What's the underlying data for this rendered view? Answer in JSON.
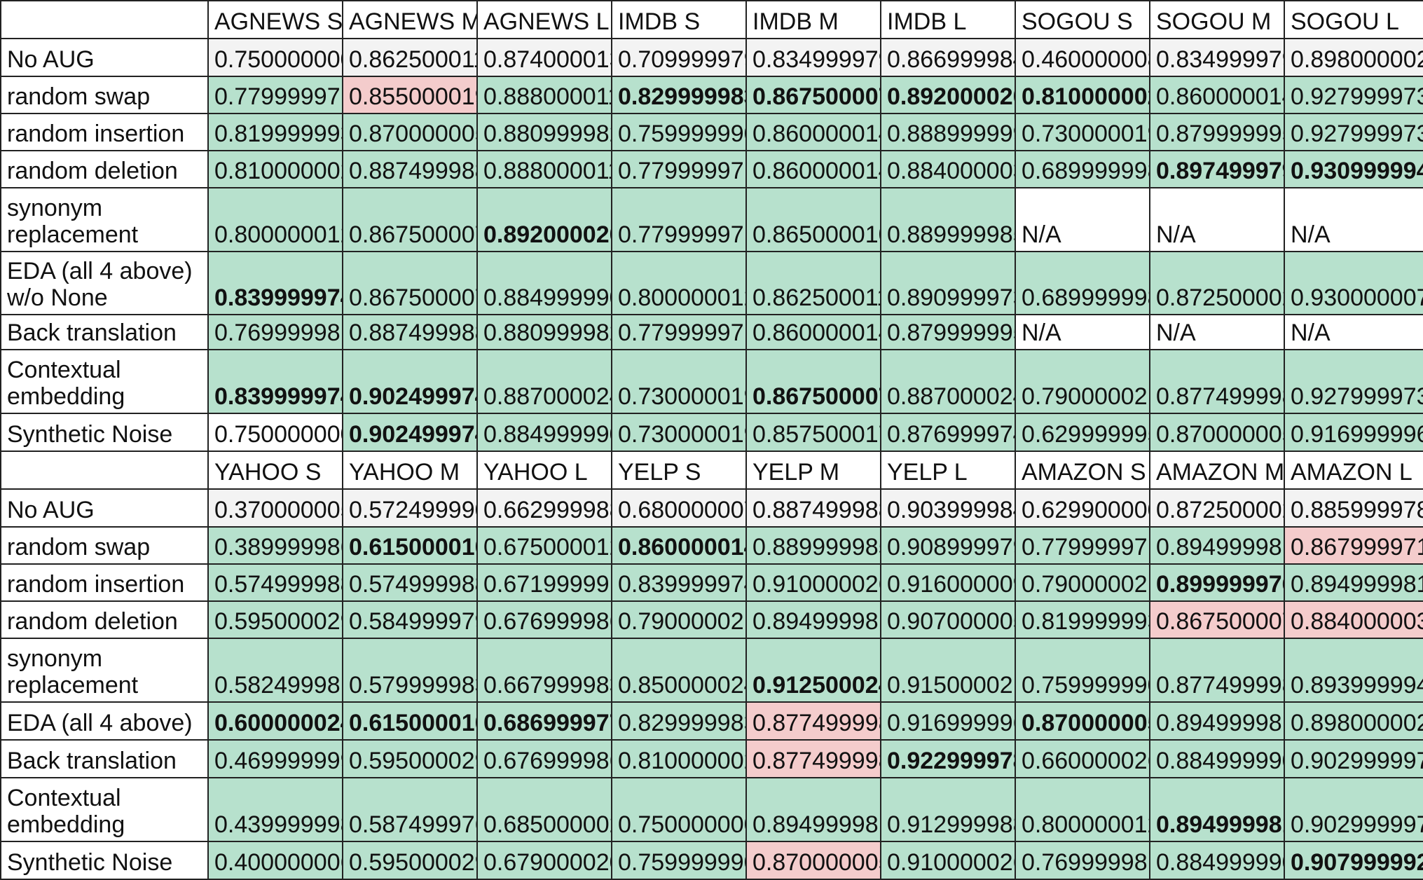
{
  "colors": {
    "baseline_gray": "#f3f3f3",
    "improved_green": "#b7e1cd",
    "worse_red": "#f4cccc",
    "plain_white": "#ffffff",
    "grid_line": "#222222"
  },
  "cell_style_legend": {
    "n": "baseline (No AUG) gray",
    "g": "green",
    "r": "red",
    "w": "white",
    "b": "bold"
  },
  "sections": [
    {
      "headers": [
        "",
        "AGNEWS S",
        "AGNEWS M",
        "AGNEWS L",
        "IMDB S",
        "IMDB M",
        "IMDB L",
        "SOGOU S",
        "SOGOU M",
        "SOGOU L"
      ],
      "rows": [
        {
          "label": "No AUG",
          "cells": [
            {
              "text": "0.750000000",
              "style": "n"
            },
            {
              "text": "0.862500011",
              "style": "n"
            },
            {
              "text": "0.874000013",
              "style": "n"
            },
            {
              "text": "0.709999979",
              "style": "n"
            },
            {
              "text": "0.834999979",
              "style": "n"
            },
            {
              "text": "0.866999984",
              "style": "n"
            },
            {
              "text": "0.460000008",
              "style": "n"
            },
            {
              "text": "0.834999979",
              "style": "n"
            },
            {
              "text": "0.898000002",
              "style": "n"
            }
          ]
        },
        {
          "label": "random swap",
          "cells": [
            {
              "text": "0.779999971",
              "style": "g"
            },
            {
              "text": "0.855000019",
              "style": "r"
            },
            {
              "text": "0.888000011",
              "style": "g"
            },
            {
              "text": "0.829999983",
              "style": "g b"
            },
            {
              "text": "0.867500007",
              "style": "g b"
            },
            {
              "text": "0.892000020",
              "style": "g b"
            },
            {
              "text": "0.810000002",
              "style": "g b"
            },
            {
              "text": "0.860000014",
              "style": "g"
            },
            {
              "text": "0.927999973",
              "style": "g"
            }
          ]
        },
        {
          "label": "random insertion",
          "cells": [
            {
              "text": "0.819999993",
              "style": "g"
            },
            {
              "text": "0.870000005",
              "style": "g"
            },
            {
              "text": "0.880999982",
              "style": "g"
            },
            {
              "text": "0.759999990",
              "style": "g"
            },
            {
              "text": "0.860000014",
              "style": "g"
            },
            {
              "text": "0.888999999",
              "style": "g"
            },
            {
              "text": "0.730000019",
              "style": "g"
            },
            {
              "text": "0.879999995",
              "style": "g"
            },
            {
              "text": "0.927999973",
              "style": "g"
            }
          ]
        },
        {
          "label": "random deletion",
          "cells": [
            {
              "text": "0.810000002",
              "style": "g"
            },
            {
              "text": "0.887499988",
              "style": "g"
            },
            {
              "text": "0.888000011",
              "style": "g"
            },
            {
              "text": "0.779999971",
              "style": "g"
            },
            {
              "text": "0.860000014",
              "style": "g"
            },
            {
              "text": "0.884000003",
              "style": "g"
            },
            {
              "text": "0.689999998",
              "style": "g"
            },
            {
              "text": "0.897499979",
              "style": "g b"
            },
            {
              "text": "0.930999994",
              "style": "g b"
            }
          ]
        },
        {
          "label": "synonym replacement",
          "cells": [
            {
              "text": "0.800000012",
              "style": "g"
            },
            {
              "text": "0.867500007",
              "style": "g"
            },
            {
              "text": "0.892000020",
              "style": "g b"
            },
            {
              "text": "0.779999971",
              "style": "g"
            },
            {
              "text": "0.865000010",
              "style": "g"
            },
            {
              "text": "0.889999985",
              "style": "g"
            },
            {
              "text": "N/A",
              "style": "w"
            },
            {
              "text": "N/A",
              "style": "w"
            },
            {
              "text": "N/A",
              "style": "w"
            }
          ]
        },
        {
          "label": "EDA (all 4 above) w/o None",
          "cells": [
            {
              "text": "0.839999974",
              "style": "g b"
            },
            {
              "text": "0.867500007",
              "style": "g"
            },
            {
              "text": "0.884999990",
              "style": "g"
            },
            {
              "text": "0.800000012",
              "style": "g"
            },
            {
              "text": "0.862500011",
              "style": "g"
            },
            {
              "text": "0.890999973",
              "style": "g"
            },
            {
              "text": "0.689999998",
              "style": "g"
            },
            {
              "text": "0.872500002",
              "style": "g"
            },
            {
              "text": "0.930000007",
              "style": "g"
            }
          ]
        },
        {
          "label": "Back translation",
          "cells": [
            {
              "text": "0.769999981",
              "style": "g"
            },
            {
              "text": "0.887499988",
              "style": "g"
            },
            {
              "text": "0.880999982",
              "style": "g"
            },
            {
              "text": "0.779999971",
              "style": "g"
            },
            {
              "text": "0.860000014",
              "style": "g"
            },
            {
              "text": "0.879999995",
              "style": "g"
            },
            {
              "text": "N/A",
              "style": "w"
            },
            {
              "text": "N/A",
              "style": "w"
            },
            {
              "text": "N/A",
              "style": "w"
            }
          ]
        },
        {
          "label": "Contextual embedding",
          "cells": [
            {
              "text": "0.839999974",
              "style": "g b"
            },
            {
              "text": "0.902499974",
              "style": "g b"
            },
            {
              "text": "0.887000024",
              "style": "g"
            },
            {
              "text": "0.730000019",
              "style": "g"
            },
            {
              "text": "0.867500007",
              "style": "g b"
            },
            {
              "text": "0.887000024",
              "style": "g"
            },
            {
              "text": "0.790000021",
              "style": "g"
            },
            {
              "text": "0.877499998",
              "style": "g"
            },
            {
              "text": "0.927999973",
              "style": "g"
            }
          ]
        },
        {
          "label": "Synthetic Noise",
          "cells": [
            {
              "text": "0.750000000",
              "style": "w"
            },
            {
              "text": "0.902499974",
              "style": "g b"
            },
            {
              "text": "0.884999990",
              "style": "g"
            },
            {
              "text": "0.730000019",
              "style": "g"
            },
            {
              "text": "0.857500017",
              "style": "g"
            },
            {
              "text": "0.876999974",
              "style": "g"
            },
            {
              "text": "0.629999995",
              "style": "g"
            },
            {
              "text": "0.870000005",
              "style": "g"
            },
            {
              "text": "0.916999996",
              "style": "g"
            }
          ]
        }
      ]
    },
    {
      "headers": [
        "",
        "YAHOO S",
        "YAHOO M",
        "YAHOO L",
        "YELP S",
        "YELP M",
        "YELP L",
        "AMAZON S",
        "AMAZON M",
        "AMAZON L"
      ],
      "rows": [
        {
          "label": "No AUG",
          "cells": [
            {
              "text": "0.370000005",
              "style": "n"
            },
            {
              "text": "0.572499990",
              "style": "n"
            },
            {
              "text": "0.662999988",
              "style": "n"
            },
            {
              "text": "0.680000007",
              "style": "n"
            },
            {
              "text": "0.887499988",
              "style": "n"
            },
            {
              "text": "0.903999984",
              "style": "n"
            },
            {
              "text": "0.629900000",
              "style": "n"
            },
            {
              "text": "0.872500002",
              "style": "n"
            },
            {
              "text": "0.885999978",
              "style": "n"
            }
          ]
        },
        {
          "label": "random swap",
          "cells": [
            {
              "text": "0.389999986",
              "style": "g"
            },
            {
              "text": "0.615000010",
              "style": "g b"
            },
            {
              "text": "0.675000012",
              "style": "g"
            },
            {
              "text": "0.860000014",
              "style": "g b"
            },
            {
              "text": "0.889999985",
              "style": "g"
            },
            {
              "text": "0.908999979",
              "style": "g"
            },
            {
              "text": "0.779999971",
              "style": "g"
            },
            {
              "text": "0.894999981",
              "style": "g"
            },
            {
              "text": "0.867999971",
              "style": "r"
            }
          ]
        },
        {
          "label": "random insertion",
          "cells": [
            {
              "text": "0.574999988",
              "style": "g"
            },
            {
              "text": "0.574999988",
              "style": "g"
            },
            {
              "text": "0.671999991",
              "style": "g"
            },
            {
              "text": "0.839999974",
              "style": "g"
            },
            {
              "text": "0.910000026",
              "style": "g"
            },
            {
              "text": "0.916000009",
              "style": "g"
            },
            {
              "text": "0.790000021",
              "style": "g"
            },
            {
              "text": "0.899999976",
              "style": "g b"
            },
            {
              "text": "0.894999981",
              "style": "g"
            }
          ]
        },
        {
          "label": "random deletion",
          "cells": [
            {
              "text": "0.595000029",
              "style": "g"
            },
            {
              "text": "0.584999979",
              "style": "g"
            },
            {
              "text": "0.676999986",
              "style": "g"
            },
            {
              "text": "0.790000021",
              "style": "g"
            },
            {
              "text": "0.894999981",
              "style": "g"
            },
            {
              "text": "0.907000005",
              "style": "g"
            },
            {
              "text": "0.819999993",
              "style": "g"
            },
            {
              "text": "0.867500007",
              "style": "r"
            },
            {
              "text": "0.884000003",
              "style": "r"
            }
          ]
        },
        {
          "label": "synonym replacement",
          "cells": [
            {
              "text": "0.582499981",
              "style": "g"
            },
            {
              "text": "0.579999983",
              "style": "g"
            },
            {
              "text": "0.667999983",
              "style": "g"
            },
            {
              "text": "0.850000024",
              "style": "g"
            },
            {
              "text": "0.912500024",
              "style": "g b"
            },
            {
              "text": "0.915000021",
              "style": "g"
            },
            {
              "text": "0.759999990",
              "style": "g"
            },
            {
              "text": "0.877499998",
              "style": "g"
            },
            {
              "text": "0.893999994",
              "style": "g"
            }
          ]
        },
        {
          "label": "EDA (all 4 above)",
          "cells": [
            {
              "text": "0.600000024",
              "style": "g b"
            },
            {
              "text": "0.615000010",
              "style": "g b"
            },
            {
              "text": "0.686999977",
              "style": "g b"
            },
            {
              "text": "0.829999983",
              "style": "g"
            },
            {
              "text": "0.877499998",
              "style": "r"
            },
            {
              "text": "0.916999996",
              "style": "g"
            },
            {
              "text": "0.870000005",
              "style": "g b"
            },
            {
              "text": "0.894999981",
              "style": "g"
            },
            {
              "text": "0.898000002",
              "style": "g"
            }
          ]
        },
        {
          "label": "Back translation",
          "cells": [
            {
              "text": "0.469999999",
              "style": "g"
            },
            {
              "text": "0.595000029",
              "style": "g"
            },
            {
              "text": "0.676999986",
              "style": "g"
            },
            {
              "text": "0.810000002",
              "style": "g"
            },
            {
              "text": "0.877499998",
              "style": "r"
            },
            {
              "text": "0.922999978",
              "style": "g b"
            },
            {
              "text": "0.660000026",
              "style": "g"
            },
            {
              "text": "0.884999990",
              "style": "g"
            },
            {
              "text": "0.902999997",
              "style": "g"
            }
          ]
        },
        {
          "label": "Contextual embedding",
          "cells": [
            {
              "text": "0.439999998",
              "style": "g"
            },
            {
              "text": "0.587499976",
              "style": "g"
            },
            {
              "text": "0.685000002",
              "style": "g"
            },
            {
              "text": "0.750000000",
              "style": "g"
            },
            {
              "text": "0.894999981",
              "style": "g"
            },
            {
              "text": "0.912999988",
              "style": "g"
            },
            {
              "text": "0.800000012",
              "style": "g"
            },
            {
              "text": "0.894999981",
              "style": "g b"
            },
            {
              "text": "0.902999997",
              "style": "g"
            }
          ]
        },
        {
          "label": "Synthetic Noise",
          "cells": [
            {
              "text": "0.400000006",
              "style": "g"
            },
            {
              "text": "0.595000029",
              "style": "g"
            },
            {
              "text": "0.679000020",
              "style": "g"
            },
            {
              "text": "0.759999990",
              "style": "g"
            },
            {
              "text": "0.870000005",
              "style": "r"
            },
            {
              "text": "0.910000026",
              "style": "g"
            },
            {
              "text": "0.769999981",
              "style": "g"
            },
            {
              "text": "0.884999990",
              "style": "g"
            },
            {
              "text": "0.907999992",
              "style": "g b"
            }
          ]
        }
      ]
    }
  ]
}
